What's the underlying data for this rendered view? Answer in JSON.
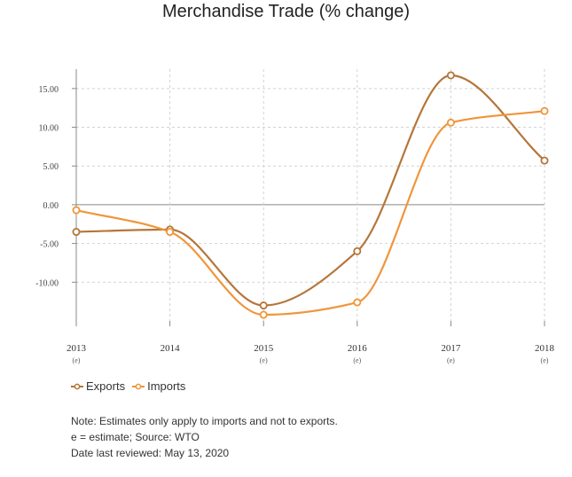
{
  "title": "Merchandise Trade (% change)",
  "chart_data": {
    "type": "line",
    "x": [
      "2013",
      "2014",
      "2015",
      "2016",
      "2017",
      "2018"
    ],
    "x_sublabels": [
      "(e)",
      "",
      "(e)",
      "(e)",
      "(e)",
      "(e)"
    ],
    "series": [
      {
        "name": "Exports",
        "color": "#b5763a",
        "values": [
          -3.5,
          -3.2,
          -13.0,
          -6.0,
          16.7,
          5.7
        ]
      },
      {
        "name": "Imports",
        "color": "#f0953a",
        "values": [
          -0.7,
          -3.5,
          -14.2,
          -12.6,
          10.6,
          12.1
        ]
      }
    ],
    "ylim": [
      -15,
      17.5
    ],
    "yticks": [
      15,
      10,
      5,
      0,
      -5,
      -10
    ],
    "ytick_labels": [
      "15.00",
      "10.00",
      "5.00",
      "0.00",
      "-5.00",
      "-10.00"
    ],
    "grid": true,
    "legend": "bottom-left"
  },
  "notes": [
    "Note: Estimates only apply to imports and not to exports.",
    "e = estimate; Source: WTO",
    "Date last reviewed: May 13, 2020"
  ]
}
